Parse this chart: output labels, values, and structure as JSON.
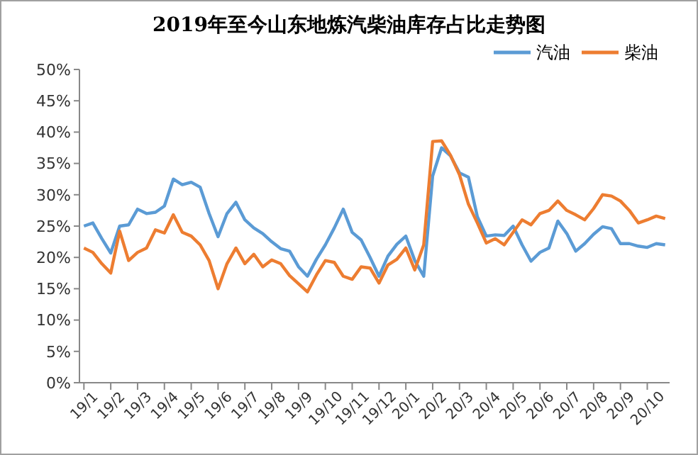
{
  "chart_data": {
    "type": "line",
    "title": "2019年至今山东地炼汽柴油库存占比走势图",
    "categories": [
      "19/1",
      null,
      null,
      "19/2",
      null,
      null,
      "19/3",
      null,
      null,
      "19/4",
      null,
      null,
      "19/5",
      null,
      null,
      "19/6",
      null,
      null,
      "19/7",
      null,
      null,
      "19/8",
      null,
      null,
      "19/9",
      null,
      null,
      "19/10",
      null,
      null,
      "19/11",
      null,
      null,
      "19/12",
      null,
      null,
      "20/1",
      null,
      null,
      "20/2",
      null,
      null,
      "20/3",
      null,
      null,
      "20/4",
      null,
      null,
      "20/5",
      null,
      null,
      "20/6",
      null,
      null,
      "20/7",
      null,
      null,
      "20/8",
      null,
      null,
      "20/9",
      null,
      null,
      "20/10",
      null,
      null
    ],
    "series": [
      {
        "name": "汽油",
        "color": "#5b9bd5",
        "values": [
          25,
          25.5,
          23,
          20.7,
          25,
          25.2,
          27.7,
          27,
          27.2,
          28.2,
          32.5,
          31.6,
          32,
          31.2,
          27,
          23.3,
          27,
          28.8,
          26,
          24.7,
          23.8,
          22.5,
          21.4,
          21,
          18.5,
          17,
          19.7,
          22,
          24.7,
          27.7,
          24,
          22.8,
          20,
          17,
          20.2,
          22.1,
          23.4,
          19.5,
          17,
          33,
          37.5,
          36.2,
          33.5,
          32.8,
          26.5,
          23.4,
          23.6,
          23.5,
          25,
          22,
          19.4,
          20.8,
          21.5,
          25.8,
          23.8,
          21,
          22.2,
          23.7,
          24.9,
          24.6,
          22.2,
          22.2,
          21.8,
          21.6,
          22.2,
          22
        ]
      },
      {
        "name": "柴油",
        "color": "#ed7d31",
        "values": [
          21.5,
          20.8,
          19,
          17.5,
          24.2,
          19.5,
          20.8,
          21.5,
          24.4,
          23.9,
          26.8,
          24,
          23.4,
          22,
          19.5,
          15,
          19,
          21.5,
          19,
          20.5,
          18.5,
          19.6,
          19,
          17.1,
          15.8,
          14.5,
          17.2,
          19.5,
          19.2,
          17,
          16.5,
          18.5,
          18.3,
          15.9,
          18.8,
          19.7,
          21.5,
          18,
          22,
          38.5,
          38.6,
          36.3,
          33.2,
          28.5,
          25.5,
          22.3,
          23,
          22,
          24,
          26,
          25.2,
          27,
          27.5,
          29,
          27.5,
          26.8,
          26,
          27.8,
          30,
          29.8,
          29,
          27.5,
          25.5,
          26,
          26.6,
          26.2
        ]
      }
    ],
    "ylim": [
      0,
      50
    ],
    "yticks": [
      {
        "value": 0,
        "label": "0%"
      },
      {
        "value": 5,
        "label": "5%"
      },
      {
        "value": 10,
        "label": "10%"
      },
      {
        "value": 15,
        "label": "15%"
      },
      {
        "value": 20,
        "label": "20%"
      },
      {
        "value": 25,
        "label": "25%"
      },
      {
        "value": 30,
        "label": "30%"
      },
      {
        "value": 35,
        "label": "35%"
      },
      {
        "value": 40,
        "label": "40%"
      },
      {
        "value": 45,
        "label": "45%"
      },
      {
        "value": 50,
        "label": "50%"
      }
    ],
    "grid": false,
    "legend": "top right",
    "marker": "none",
    "line_style": "solid"
  }
}
